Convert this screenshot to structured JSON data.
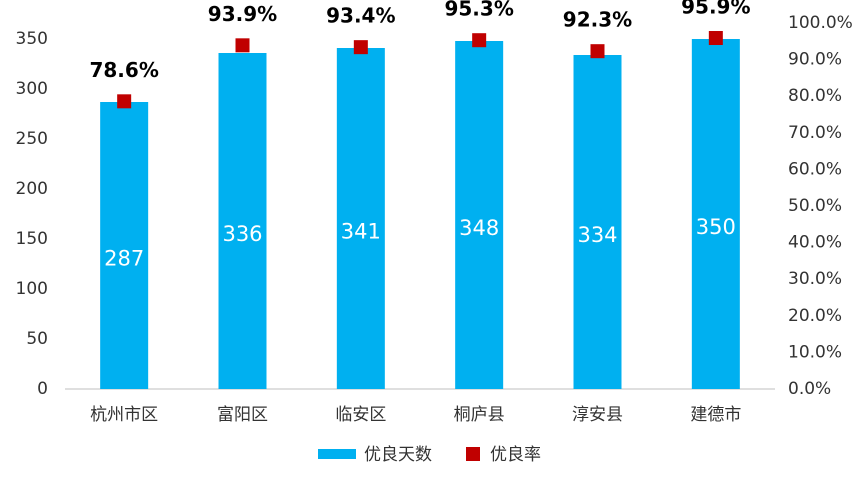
{
  "chart_data": {
    "type": "bar-line",
    "categories": [
      "杭州市区",
      "富阳区",
      "临安区",
      "桐庐县",
      "淳安县",
      "建德市"
    ],
    "series": [
      {
        "name": "优良天数",
        "type": "bar",
        "color": "#00b0f0",
        "values": [
          287,
          336,
          341,
          348,
          334,
          350
        ]
      },
      {
        "name": "优良率",
        "type": "marker",
        "axis": "y2",
        "color": "#c00000",
        "values": [
          78.6,
          93.9,
          93.4,
          95.3,
          92.3,
          95.9
        ],
        "value_labels": [
          "78.6%",
          "93.9%",
          "93.4%",
          "95.3%",
          "92.3%",
          "95.9%"
        ]
      }
    ],
    "ylim": [
      0,
      350
    ],
    "yticks": [
      0,
      50,
      100,
      150,
      200,
      250,
      300,
      350
    ],
    "y2lim": [
      0,
      100
    ],
    "y2ticks": [
      {
        "value": 0,
        "label": "0.0%"
      },
      {
        "value": 10,
        "label": "10.0%"
      },
      {
        "value": 20,
        "label": "20.0%"
      },
      {
        "value": 30,
        "label": "30.0%"
      },
      {
        "value": 40,
        "label": "40.0%"
      },
      {
        "value": 50,
        "label": "50.0%"
      },
      {
        "value": 60,
        "label": "60.0%"
      },
      {
        "value": 70,
        "label": "70.0%"
      },
      {
        "value": 80,
        "label": "80.0%"
      },
      {
        "value": 90,
        "label": "90.0%"
      },
      {
        "value": 100,
        "label": "100.0%"
      }
    ],
    "legend": "bottom"
  }
}
